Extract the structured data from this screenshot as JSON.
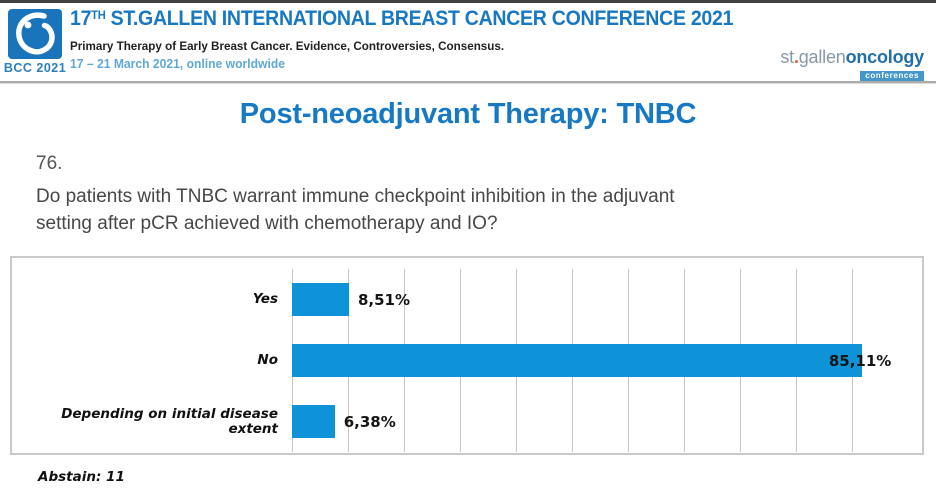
{
  "header": {
    "logo": {
      "badge_label": "BCC 2021",
      "square_color": "#1a74bc",
      "icon": "stylized-drop-icon"
    },
    "title": {
      "prefix": "17",
      "superscript": "TH",
      "rest": " ST.GALLEN INTERNATIONAL BREAST CANCER CONFERENCE 2021"
    },
    "subtitle": "Primary Therapy of Early Breast Cancer. Evidence, Controversies, Consensus.",
    "dates": "17 – 21 March 2021, online worldwide",
    "brand": {
      "st": "st",
      "dot": ".",
      "gallen": "gallen",
      "oncology": "oncology",
      "badge": "conferences"
    }
  },
  "slide": {
    "title": "Post-neoadjuvant Therapy: TNBC",
    "question": {
      "number": "76.",
      "line1": "Do patients with TNBC warrant immune checkpoint inhibition in the adjuvant",
      "line2": "setting after pCR achieved with chemotherapy and IO?"
    },
    "footer": {
      "abstain": "Abstain: 11"
    }
  },
  "chart_data": {
    "type": "bar",
    "orientation": "horizontal",
    "title": "",
    "categories": [
      "Yes",
      "No",
      "Depending on initial disease extent"
    ],
    "values": [
      8.51,
      85.11,
      6.38
    ],
    "value_labels": [
      "8,51%",
      "85,11%",
      "6,38%"
    ],
    "xlim": [
      0,
      92
    ],
    "grid": true,
    "legend": false,
    "bar_color": "#0e93d8"
  },
  "colors": {
    "header_title_blue": "#1878c1",
    "slide_title_blue": "#1779c4",
    "dates_blue": "#5fa8d6",
    "bar_blue": "#0e93d8",
    "question_gray": "#474747",
    "brand_gray": "#8898a8",
    "brand_blue": "#1f6fad",
    "brand_badge_blue": "#4596c9",
    "brand_dot_orange": "#e25b2a",
    "logo_square_blue": "#1a74bc"
  }
}
